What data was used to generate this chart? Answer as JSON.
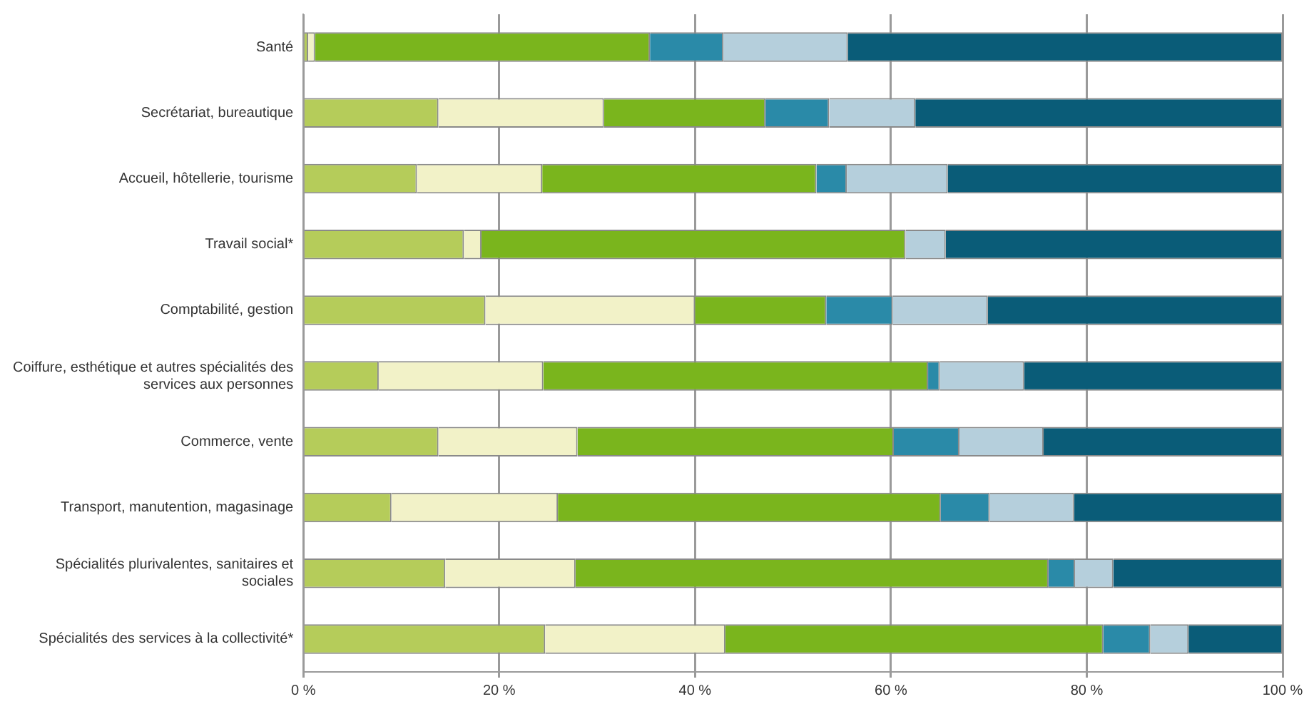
{
  "chart_data": {
    "type": "bar",
    "orientation": "horizontal",
    "stacked": true,
    "categories": [
      "Santé",
      "Secrétariat, bureautique",
      "Accueil, hôtellerie, tourisme",
      "Travail social*",
      "Comptabilité, gestion",
      "Coiffure, esthétique et autres spécialités des services aux personnes",
      "Commerce, vente",
      "Transport, manutention, magasinage",
      "Spécialités plurivalentes, sanitaires et sociales",
      "Spécialités des services à la collectivité*"
    ],
    "series": [
      {
        "color": "#b5cc5a",
        "values": [
          0.5,
          13.8,
          11.6,
          16.4,
          18.6,
          7.7,
          13.8,
          9.0,
          14.5,
          24.7
        ]
      },
      {
        "color": "#f2f2c8",
        "values": [
          0.7,
          16.9,
          12.8,
          1.8,
          21.4,
          16.8,
          14.2,
          17.0,
          13.3,
          18.4
        ]
      },
      {
        "color": "#7ab51d",
        "values": [
          34.2,
          16.5,
          28.0,
          43.3,
          13.4,
          39.3,
          32.3,
          39.1,
          48.3,
          38.6
        ]
      },
      {
        "color": "#2a8aa8",
        "values": [
          7.5,
          6.5,
          3.1,
          0,
          6.8,
          1.2,
          6.7,
          5.0,
          2.7,
          4.8
        ]
      },
      {
        "color": "#b5cfdc",
        "values": [
          12.7,
          8.8,
          10.3,
          4.1,
          9.7,
          8.6,
          8.6,
          8.6,
          3.9,
          3.9
        ]
      },
      {
        "color": "#0a5c78",
        "values": [
          44.4,
          37.5,
          34.2,
          34.4,
          30.1,
          26.4,
          24.4,
          21.3,
          17.3,
          9.6
        ]
      }
    ],
    "xlim": [
      0,
      100
    ],
    "xticks": [
      {
        "value": 0,
        "label": "0 %"
      },
      {
        "value": 20,
        "label": "20 %"
      },
      {
        "value": 40,
        "label": "40 %"
      },
      {
        "value": 60,
        "label": "60 %"
      },
      {
        "value": 80,
        "label": "80 %"
      },
      {
        "value": 100,
        "label": "100 %"
      }
    ],
    "grid": "x",
    "legend": false
  }
}
